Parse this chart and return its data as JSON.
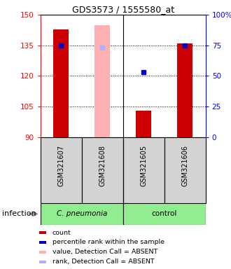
{
  "title": "GDS3573 / 1555580_at",
  "samples": [
    "GSM321607",
    "GSM321608",
    "GSM321605",
    "GSM321606"
  ],
  "group_labels": [
    "C. pneumonia",
    "control"
  ],
  "ylim_left": [
    90,
    150
  ],
  "ylim_right": [
    0,
    100
  ],
  "yticks_left": [
    90,
    105,
    120,
    135,
    150
  ],
  "yticks_right": [
    0,
    25,
    50,
    75,
    100
  ],
  "yticklabels_right": [
    "0",
    "25",
    "50",
    "75",
    "100%"
  ],
  "bar_values": [
    143,
    null,
    103,
    136
  ],
  "bar_absent_value": 145,
  "rank_values": [
    135,
    null,
    122,
    135
  ],
  "rank_absent_value": 134,
  "bar_color": "#cc0000",
  "bar_absent_color": "#ffb0b0",
  "rank_color": "#0000cc",
  "rank_absent_color": "#b0b0ff",
  "legend_items": [
    {
      "color": "#cc0000",
      "label": "count"
    },
    {
      "color": "#0000cc",
      "label": "percentile rank within the sample"
    },
    {
      "color": "#ffb0b0",
      "label": "value, Detection Call = ABSENT"
    },
    {
      "color": "#b0b0ff",
      "label": "rank, Detection Call = ABSENT"
    }
  ],
  "infection_label": "infection",
  "background_color": "#ffffff",
  "sample_box_color": "#d3d3d3",
  "group_box_color": "#90ee90"
}
